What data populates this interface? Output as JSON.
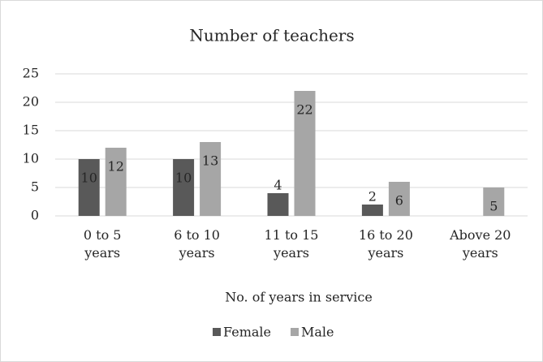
{
  "chart_data": {
    "type": "bar",
    "title": "Number of teachers",
    "categories": [
      "0 to 5 years",
      "6 to 10 years",
      "11 to 15 years",
      "16 to 20 years",
      "Above 20 years"
    ],
    "series": [
      {
        "name": "Female",
        "color": "#595959",
        "values": [
          10,
          10,
          4,
          2,
          null
        ]
      },
      {
        "name": "Male",
        "color": "#a6a6a6",
        "values": [
          12,
          13,
          22,
          6,
          5
        ]
      }
    ],
    "xlabel": "No. of years in service",
    "ylim": [
      0,
      25
    ],
    "yticks": [
      0,
      5,
      10,
      15,
      20,
      25
    ],
    "grid": true,
    "legend": "bottom"
  }
}
